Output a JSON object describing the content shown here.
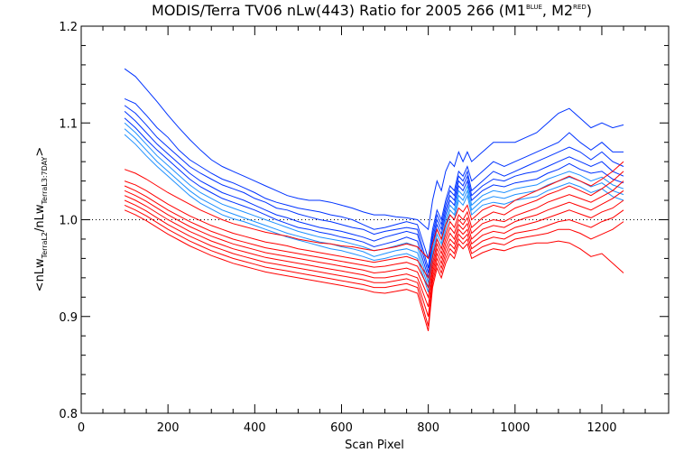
{
  "chart_data": {
    "type": "line",
    "title": {
      "main": "MODIS/Terra TV06 nLw(443) Ratio for 2005 266 (M1",
      "sup1": "BLUE",
      "mid": ", M2",
      "sup2": "RED",
      "end": ")"
    },
    "xlabel": "Scan Pixel",
    "ylabel": {
      "a": "<nLw",
      "sub1": "TerraL2",
      "b": "/nLw",
      "sub2": "TerraL3:7DAY",
      "c": ">"
    },
    "xlim": [
      0,
      1354
    ],
    "ylim": [
      0.8,
      1.2
    ],
    "x_ticks": [
      "0",
      "200",
      "400",
      "600",
      "800",
      "1000",
      "1200"
    ],
    "y_ticks": [
      "0.8",
      "0.9",
      "1.0",
      "1.1",
      "1.2"
    ],
    "reference_line": 1.0,
    "x": [
      100,
      125,
      150,
      175,
      200,
      225,
      250,
      275,
      300,
      325,
      350,
      375,
      400,
      425,
      450,
      475,
      500,
      525,
      550,
      575,
      600,
      625,
      650,
      675,
      700,
      725,
      750,
      775,
      800,
      810,
      820,
      830,
      840,
      850,
      860,
      870,
      880,
      890,
      900,
      925,
      950,
      975,
      1000,
      1025,
      1050,
      1075,
      1100,
      1125,
      1150,
      1175,
      1200,
      1225,
      1250
    ],
    "series_colors": {
      "M1": "#0033ff",
      "M2": "#ff0000",
      "M1_light": "#1e90ff"
    },
    "series": [
      {
        "group": "M1",
        "values": [
          1.156,
          1.148,
          1.135,
          1.122,
          1.108,
          1.095,
          1.083,
          1.072,
          1.062,
          1.055,
          1.05,
          1.045,
          1.04,
          1.035,
          1.03,
          1.025,
          1.022,
          1.02,
          1.02,
          1.018,
          1.015,
          1.012,
          1.008,
          1.005,
          1.005,
          1.003,
          1.002,
          1.0,
          0.99,
          1.02,
          1.04,
          1.03,
          1.05,
          1.06,
          1.055,
          1.07,
          1.06,
          1.07,
          1.06,
          1.07,
          1.08,
          1.08,
          1.08,
          1.085,
          1.09,
          1.1,
          1.11,
          1.115,
          1.105,
          1.095,
          1.1,
          1.095,
          1.098
        ]
      },
      {
        "group": "M1",
        "values": [
          1.125,
          1.12,
          1.108,
          1.095,
          1.085,
          1.072,
          1.062,
          1.055,
          1.048,
          1.042,
          1.038,
          1.033,
          1.028,
          1.022,
          1.018,
          1.015,
          1.012,
          1.01,
          1.008,
          1.005,
          1.003,
          1.0,
          0.995,
          0.99,
          0.992,
          0.995,
          0.998,
          0.995,
          0.96,
          0.99,
          1.01,
          1.0,
          1.02,
          1.035,
          1.03,
          1.05,
          1.045,
          1.055,
          1.04,
          1.05,
          1.06,
          1.055,
          1.06,
          1.065,
          1.07,
          1.075,
          1.08,
          1.09,
          1.08,
          1.072,
          1.08,
          1.07,
          1.07
        ]
      },
      {
        "group": "M1",
        "values": [
          1.118,
          1.11,
          1.098,
          1.085,
          1.075,
          1.065,
          1.055,
          1.048,
          1.042,
          1.036,
          1.032,
          1.028,
          1.022,
          1.018,
          1.012,
          1.01,
          1.006,
          1.003,
          1.0,
          0.998,
          0.995,
          0.992,
          0.99,
          0.985,
          0.988,
          0.99,
          0.992,
          0.99,
          0.95,
          0.985,
          1.005,
          0.995,
          1.015,
          1.03,
          1.025,
          1.045,
          1.04,
          1.05,
          1.03,
          1.04,
          1.05,
          1.045,
          1.05,
          1.055,
          1.06,
          1.065,
          1.07,
          1.075,
          1.07,
          1.062,
          1.07,
          1.06,
          1.055
        ]
      },
      {
        "group": "M1",
        "values": [
          1.112,
          1.102,
          1.09,
          1.078,
          1.068,
          1.058,
          1.048,
          1.04,
          1.034,
          1.028,
          1.024,
          1.02,
          1.015,
          1.01,
          1.005,
          1.002,
          0.998,
          0.995,
          0.992,
          0.99,
          0.988,
          0.985,
          0.982,
          0.978,
          0.982,
          0.985,
          0.988,
          0.985,
          0.945,
          0.98,
          1.0,
          0.99,
          1.01,
          1.025,
          1.02,
          1.04,
          1.035,
          1.045,
          1.025,
          1.035,
          1.042,
          1.04,
          1.045,
          1.048,
          1.05,
          1.055,
          1.06,
          1.065,
          1.06,
          1.055,
          1.06,
          1.05,
          1.045
        ]
      },
      {
        "group": "M1",
        "values": [
          1.105,
          1.095,
          1.083,
          1.072,
          1.062,
          1.052,
          1.042,
          1.034,
          1.028,
          1.022,
          1.018,
          1.014,
          1.01,
          1.005,
          1.0,
          0.996,
          0.992,
          0.99,
          0.987,
          0.985,
          0.982,
          0.98,
          0.977,
          0.972,
          0.975,
          0.978,
          0.982,
          0.978,
          0.94,
          0.975,
          0.995,
          0.985,
          1.005,
          1.02,
          1.015,
          1.035,
          1.03,
          1.04,
          1.02,
          1.03,
          1.036,
          1.034,
          1.038,
          1.04,
          1.042,
          1.048,
          1.052,
          1.058,
          1.052,
          1.048,
          1.05,
          1.042,
          1.038
        ]
      },
      {
        "group": "M1_light",
        "values": [
          1.1,
          1.09,
          1.078,
          1.066,
          1.056,
          1.046,
          1.036,
          1.028,
          1.022,
          1.016,
          1.012,
          1.008,
          1.004,
          1.0,
          0.996,
          0.992,
          0.988,
          0.985,
          0.982,
          0.98,
          0.978,
          0.975,
          0.972,
          0.968,
          0.97,
          0.973,
          0.976,
          0.972,
          0.935,
          0.97,
          0.99,
          0.98,
          1.0,
          1.015,
          1.01,
          1.03,
          1.025,
          1.035,
          1.015,
          1.025,
          1.03,
          1.028,
          1.032,
          1.034,
          1.036,
          1.042,
          1.046,
          1.05,
          1.046,
          1.04,
          1.044,
          1.036,
          1.032
        ]
      },
      {
        "group": "M1_light",
        "values": [
          1.094,
          1.084,
          1.072,
          1.06,
          1.05,
          1.04,
          1.03,
          1.022,
          1.016,
          1.01,
          1.006,
          1.002,
          0.998,
          0.994,
          0.99,
          0.986,
          0.983,
          0.98,
          0.977,
          0.975,
          0.972,
          0.97,
          0.967,
          0.962,
          0.965,
          0.968,
          0.97,
          0.966,
          0.93,
          0.965,
          0.985,
          0.975,
          0.995,
          1.01,
          1.005,
          1.025,
          1.02,
          1.03,
          1.01,
          1.02,
          1.024,
          1.022,
          1.026,
          1.028,
          1.03,
          1.036,
          1.04,
          1.044,
          1.04,
          1.034,
          1.038,
          1.03,
          1.026
        ]
      },
      {
        "group": "M1_light",
        "values": [
          1.088,
          1.078,
          1.066,
          1.055,
          1.045,
          1.035,
          1.025,
          1.017,
          1.011,
          1.005,
          1.001,
          0.998,
          0.994,
          0.99,
          0.986,
          0.982,
          0.979,
          0.976,
          0.973,
          0.97,
          0.968,
          0.965,
          0.962,
          0.958,
          0.96,
          0.963,
          0.965,
          0.96,
          0.925,
          0.96,
          0.98,
          0.97,
          0.99,
          1.005,
          1.0,
          1.02,
          1.015,
          1.025,
          1.005,
          1.015,
          1.018,
          1.016,
          1.02,
          1.022,
          1.024,
          1.03,
          1.034,
          1.038,
          1.034,
          1.028,
          1.032,
          1.024,
          1.02
        ]
      },
      {
        "group": "M2",
        "values": [
          1.052,
          1.048,
          1.042,
          1.035,
          1.028,
          1.022,
          1.016,
          1.01,
          1.005,
          1.0,
          0.996,
          0.993,
          0.99,
          0.987,
          0.985,
          0.983,
          0.98,
          0.978,
          0.976,
          0.975,
          0.973,
          0.972,
          0.97,
          0.968,
          0.97,
          0.972,
          0.975,
          0.972,
          0.96,
          0.975,
          0.99,
          0.98,
          0.995,
          1.005,
          1.0,
          1.012,
          1.008,
          1.015,
          1.0,
          1.01,
          1.015,
          1.012,
          1.02,
          1.025,
          1.03,
          1.035,
          1.04,
          1.045,
          1.04,
          1.035,
          1.042,
          1.05,
          1.06
        ]
      },
      {
        "group": "M2",
        "values": [
          1.04,
          1.036,
          1.03,
          1.023,
          1.016,
          1.01,
          1.004,
          0.999,
          0.994,
          0.99,
          0.986,
          0.983,
          0.98,
          0.977,
          0.975,
          0.973,
          0.97,
          0.968,
          0.966,
          0.964,
          0.962,
          0.96,
          0.958,
          0.956,
          0.958,
          0.96,
          0.962,
          0.958,
          0.94,
          0.962,
          0.98,
          0.97,
          0.985,
          0.998,
          0.992,
          1.005,
          1.0,
          1.008,
          0.992,
          1.002,
          1.008,
          1.005,
          1.012,
          1.016,
          1.02,
          1.026,
          1.03,
          1.035,
          1.03,
          1.025,
          1.032,
          1.04,
          1.05
        ]
      },
      {
        "group": "M2",
        "values": [
          1.035,
          1.03,
          1.024,
          1.017,
          1.01,
          1.004,
          0.998,
          0.993,
          0.988,
          0.984,
          0.98,
          0.977,
          0.974,
          0.971,
          0.969,
          0.967,
          0.965,
          0.963,
          0.961,
          0.959,
          0.957,
          0.955,
          0.953,
          0.951,
          0.952,
          0.954,
          0.956,
          0.952,
          0.93,
          0.955,
          0.975,
          0.965,
          0.98,
          0.992,
          0.986,
          1.0,
          0.995,
          1.002,
          0.986,
          0.996,
          1.0,
          0.998,
          1.004,
          1.008,
          1.012,
          1.018,
          1.022,
          1.026,
          1.022,
          1.018,
          1.024,
          1.03,
          1.04
        ]
      },
      {
        "group": "M2",
        "values": [
          1.03,
          1.025,
          1.019,
          1.012,
          1.005,
          0.999,
          0.993,
          0.988,
          0.983,
          0.979,
          0.975,
          0.972,
          0.969,
          0.966,
          0.964,
          0.962,
          0.96,
          0.958,
          0.956,
          0.954,
          0.952,
          0.95,
          0.948,
          0.945,
          0.946,
          0.948,
          0.95,
          0.946,
          0.92,
          0.95,
          0.97,
          0.96,
          0.975,
          0.986,
          0.98,
          0.995,
          0.99,
          0.996,
          0.98,
          0.99,
          0.994,
          0.992,
          0.998,
          1.002,
          1.005,
          1.01,
          1.014,
          1.018,
          1.014,
          1.01,
          1.016,
          1.022,
          1.03
        ]
      },
      {
        "group": "M2",
        "values": [
          1.025,
          1.02,
          1.014,
          1.007,
          1.0,
          0.994,
          0.988,
          0.983,
          0.978,
          0.974,
          0.97,
          0.967,
          0.964,
          0.961,
          0.959,
          0.957,
          0.955,
          0.953,
          0.951,
          0.949,
          0.947,
          0.945,
          0.943,
          0.94,
          0.94,
          0.942,
          0.944,
          0.94,
          0.91,
          0.945,
          0.965,
          0.955,
          0.97,
          0.98,
          0.975,
          0.99,
          0.985,
          0.99,
          0.975,
          0.984,
          0.988,
          0.986,
          0.992,
          0.995,
          0.998,
          1.002,
          1.006,
          1.01,
          1.006,
          1.002,
          1.008,
          1.012,
          1.02
        ]
      },
      {
        "group": "M2",
        "values": [
          1.02,
          1.015,
          1.009,
          1.002,
          0.995,
          0.989,
          0.983,
          0.978,
          0.973,
          0.969,
          0.965,
          0.962,
          0.959,
          0.956,
          0.954,
          0.952,
          0.95,
          0.948,
          0.946,
          0.944,
          0.942,
          0.94,
          0.938,
          0.935,
          0.935,
          0.937,
          0.939,
          0.935,
          0.9,
          0.94,
          0.96,
          0.95,
          0.965,
          0.975,
          0.97,
          0.985,
          0.98,
          0.985,
          0.97,
          0.978,
          0.982,
          0.98,
          0.986,
          0.988,
          0.99,
          0.994,
          0.998,
          1.0,
          0.996,
          0.992,
          0.998,
          1.002,
          1.01
        ]
      },
      {
        "group": "M2",
        "values": [
          1.015,
          1.01,
          1.004,
          0.997,
          0.99,
          0.984,
          0.978,
          0.973,
          0.968,
          0.964,
          0.96,
          0.957,
          0.954,
          0.951,
          0.949,
          0.947,
          0.945,
          0.943,
          0.941,
          0.939,
          0.937,
          0.935,
          0.933,
          0.93,
          0.93,
          0.932,
          0.934,
          0.93,
          0.89,
          0.935,
          0.955,
          0.945,
          0.96,
          0.97,
          0.965,
          0.98,
          0.975,
          0.98,
          0.965,
          0.972,
          0.976,
          0.974,
          0.98,
          0.982,
          0.984,
          0.986,
          0.99,
          0.99,
          0.986,
          0.98,
          0.985,
          0.99,
          0.998
        ]
      },
      {
        "group": "M2",
        "values": [
          1.01,
          1.005,
          0.999,
          0.992,
          0.985,
          0.979,
          0.973,
          0.968,
          0.963,
          0.959,
          0.955,
          0.952,
          0.949,
          0.946,
          0.944,
          0.942,
          0.94,
          0.938,
          0.936,
          0.934,
          0.932,
          0.93,
          0.928,
          0.925,
          0.924,
          0.926,
          0.928,
          0.924,
          0.885,
          0.93,
          0.95,
          0.94,
          0.955,
          0.965,
          0.96,
          0.975,
          0.97,
          0.975,
          0.96,
          0.966,
          0.97,
          0.968,
          0.972,
          0.974,
          0.976,
          0.976,
          0.978,
          0.976,
          0.97,
          0.962,
          0.965,
          0.955,
          0.945
        ]
      }
    ]
  }
}
